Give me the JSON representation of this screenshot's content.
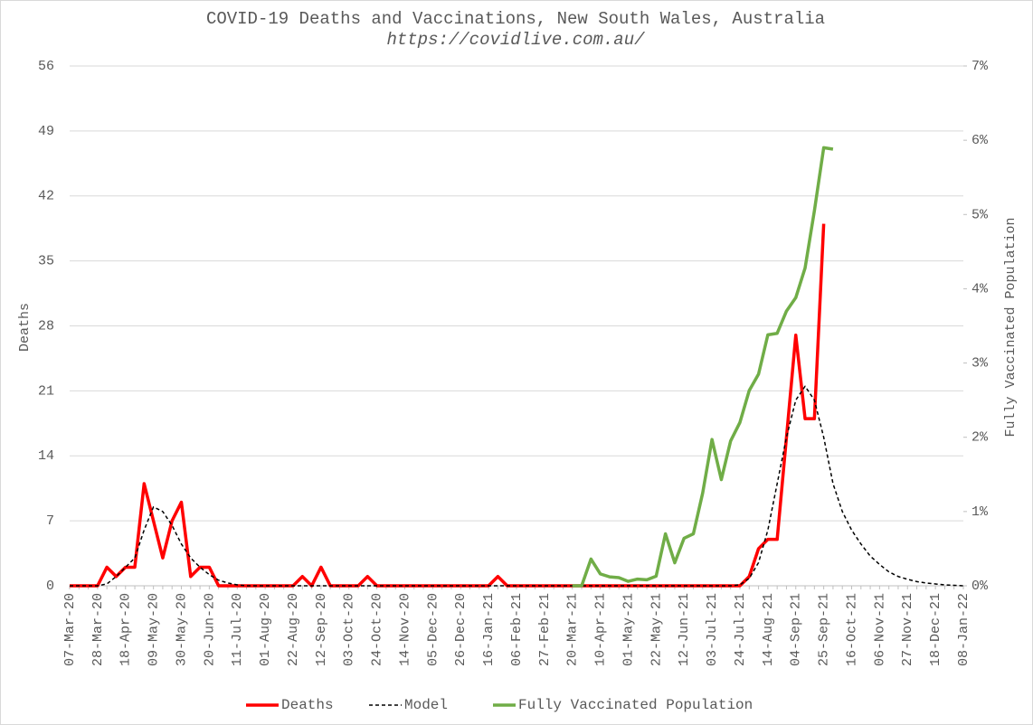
{
  "chart_data": {
    "type": "line",
    "title": "COVID-19 Deaths and Vaccinations, New South Wales, Australia",
    "subtitle": "https://covidlive.com.au/",
    "y_label": "Deaths",
    "y2_label": "Fully Vaccinated Population",
    "categories": [
      "07-Mar-20",
      null,
      null,
      "28-Mar-20",
      null,
      null,
      "18-Apr-20",
      null,
      null,
      "09-May-20",
      null,
      null,
      "30-May-20",
      null,
      null,
      "20-Jun-20",
      null,
      null,
      "11-Jul-20",
      null,
      null,
      "01-Aug-20",
      null,
      null,
      "22-Aug-20",
      null,
      null,
      "12-Sep-20",
      null,
      null,
      "03-Oct-20",
      null,
      null,
      "24-Oct-20",
      null,
      null,
      "14-Nov-20",
      null,
      null,
      "05-Dec-20",
      null,
      null,
      "26-Dec-20",
      null,
      null,
      "16-Jan-21",
      null,
      null,
      "06-Feb-21",
      null,
      null,
      "27-Feb-21",
      null,
      null,
      "20-Mar-21",
      null,
      null,
      "10-Apr-21",
      null,
      null,
      "01-May-21",
      null,
      null,
      "22-May-21",
      null,
      null,
      "12-Jun-21",
      null,
      null,
      "03-Jul-21",
      null,
      null,
      "24-Jul-21",
      null,
      null,
      "14-Aug-21",
      null,
      null,
      "04-Sep-21",
      null,
      null,
      "25-Sep-21",
      null,
      null,
      "16-Oct-21",
      null,
      null,
      "06-Nov-21",
      null,
      null,
      "27-Nov-21",
      null,
      null,
      "18-Dec-21",
      null,
      null,
      "08-Jan-22"
    ],
    "series": [
      {
        "name": "Deaths",
        "color": "#ff0000",
        "line_style": "solid",
        "axis": "y",
        "values": [
          0,
          0,
          0,
          0,
          2,
          1,
          2,
          2,
          11,
          7,
          3,
          7,
          9,
          1,
          2,
          2,
          0,
          0,
          0,
          0,
          0,
          0,
          0,
          0,
          0,
          1,
          0,
          2,
          0,
          0,
          0,
          0,
          1,
          0,
          0,
          0,
          0,
          0,
          0,
          0,
          0,
          0,
          0,
          0,
          0,
          0,
          1,
          0,
          0,
          0,
          0,
          0,
          0,
          0,
          0,
          0,
          0,
          0,
          0,
          0,
          0,
          0,
          0,
          0,
          0,
          0,
          0,
          0,
          0,
          0,
          0,
          0,
          0,
          1,
          4,
          5,
          5,
          16,
          27,
          18,
          18,
          39,
          null,
          null,
          null,
          null,
          null,
          null,
          null,
          null,
          null,
          null,
          null,
          null,
          null,
          null,
          null
        ]
      },
      {
        "name": "Model",
        "color": "#000000",
        "line_style": "dashed",
        "axis": "y",
        "values": [
          0,
          0,
          0,
          0,
          0.2,
          1,
          2,
          3,
          6,
          8.5,
          8,
          6.5,
          4.5,
          3,
          2,
          1.2,
          0.6,
          0.3,
          0.1,
          0,
          0,
          0,
          0,
          0,
          0,
          0,
          0,
          0,
          0,
          0,
          0,
          0,
          0,
          0,
          0,
          0,
          0,
          0,
          0,
          0,
          0,
          0,
          0,
          0,
          0,
          0,
          0,
          0,
          0,
          0,
          0,
          0,
          0,
          0,
          0,
          0,
          0,
          0,
          0,
          0,
          0,
          0,
          0,
          0,
          0,
          0,
          0,
          0,
          0,
          0,
          0,
          0,
          0.1,
          0.8,
          2.5,
          6,
          11,
          16,
          20,
          21.5,
          20,
          16,
          11,
          8,
          6,
          4.5,
          3.2,
          2.3,
          1.5,
          1,
          0.7,
          0.45,
          0.3,
          0.2,
          0.1,
          0.05,
          0
        ]
      },
      {
        "name": "Fully Vaccinated Population",
        "color": "#70ad47",
        "line_style": "solid",
        "axis": "y2",
        "values": [
          null,
          null,
          null,
          null,
          null,
          null,
          null,
          null,
          null,
          null,
          null,
          null,
          null,
          null,
          null,
          null,
          null,
          null,
          null,
          null,
          null,
          null,
          null,
          null,
          null,
          null,
          null,
          null,
          null,
          null,
          null,
          null,
          null,
          null,
          null,
          null,
          null,
          null,
          null,
          null,
          null,
          null,
          null,
          null,
          null,
          null,
          null,
          null,
          null,
          null,
          null,
          null,
          null,
          null,
          0,
          0,
          0.36,
          0.16,
          0.12,
          0.11,
          0.06,
          0.09,
          0.08,
          0.13,
          0.7,
          0.31,
          0.64,
          0.7,
          1.25,
          1.97,
          1.43,
          1.95,
          2.2,
          2.63,
          2.85,
          3.38,
          3.4,
          3.7,
          3.88,
          4.28,
          5.05,
          5.9,
          5.88,
          null,
          null,
          null,
          null,
          null,
          null,
          null,
          null,
          null,
          null,
          null,
          null,
          null,
          null
        ]
      }
    ],
    "ylim": [
      0,
      56
    ],
    "yticks": [
      0,
      7,
      14,
      21,
      28,
      35,
      42,
      49,
      56
    ],
    "y2lim": [
      0,
      7
    ],
    "y2ticks": [
      {
        "value": 0,
        "label": "0%"
      },
      {
        "value": 1,
        "label": "1%"
      },
      {
        "value": 2,
        "label": "2%"
      },
      {
        "value": 3,
        "label": "3%"
      },
      {
        "value": 4,
        "label": "4%"
      },
      {
        "value": 5,
        "label": "5%"
      },
      {
        "value": 6,
        "label": "6%"
      },
      {
        "value": 7,
        "label": "7%"
      }
    ],
    "grid": true,
    "legend": "bottom"
  }
}
